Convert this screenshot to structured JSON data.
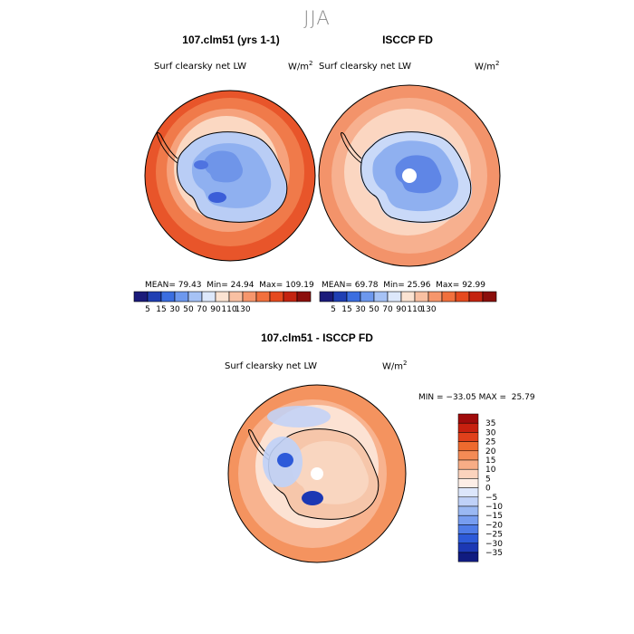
{
  "season": "JJA",
  "panels": [
    {
      "title": "107.clm51 (yrs 1-1)",
      "variable": "Surf clearsky net LW",
      "units": "W/m",
      "units_sup": "2",
      "stats": {
        "mean": "79.43",
        "min": "24.94",
        "max": "109.19"
      }
    },
    {
      "title": "ISCCP FD",
      "variable": "Surf clearsky net LW",
      "units": "W/m",
      "units_sup": "2",
      "stats": {
        "mean": "69.78",
        "min": "25.96",
        "max": "92.99"
      }
    }
  ],
  "stat_labels": {
    "mean": "MEAN=",
    "min": "Min=",
    "max": "Max="
  },
  "diff_panel": {
    "title": "107.clm51 - ISCCP FD",
    "variable": "Surf clearsky net LW",
    "units": "W/m",
    "units_sup": "2",
    "stats_text": "MIN = −33.05 MAX =  25.79"
  },
  "colorbar_top": {
    "colors": [
      "#1a1a7a",
      "#1f3fb3",
      "#3b6ee0",
      "#6d98ee",
      "#a6c2f5",
      "#dde8fb",
      "#fbe3d2",
      "#f9c0a2",
      "#f6966c",
      "#f1703d",
      "#e64a1e",
      "#c42410",
      "#8b0e0b"
    ],
    "tick_labels": [
      "5",
      "15",
      "30",
      "50",
      "70",
      "90",
      "110",
      "130"
    ]
  },
  "colorbar_diff": {
    "colors": [
      "#a00b0b",
      "#c7200f",
      "#e0401b",
      "#ee6a2e",
      "#f48b55",
      "#f8ad86",
      "#fbd3bd",
      "#fdeee6",
      "#dce6fb",
      "#bfd1f8",
      "#9ab8f3",
      "#779df0",
      "#4f7ce8",
      "#2d5ad9",
      "#1c38b4",
      "#101b80"
    ],
    "tick_labels": [
      "35",
      "30",
      "25",
      "20",
      "15",
      "10",
      "5",
      "0",
      "−5",
      "−10",
      "−15",
      "−20",
      "−25",
      "−30",
      "−35"
    ]
  },
  "chart_data": {
    "type": "heatmap",
    "figure_title": "JJA",
    "maps": [
      {
        "title": "107.clm51 (yrs 1-1)",
        "variable": "Surf clearsky net LW",
        "units": "W/m2",
        "projection": "south polar stereographic",
        "mean": 79.43,
        "min": 24.94,
        "max": 109.19,
        "contour_levels": [
          5,
          15,
          30,
          50,
          70,
          90,
          110,
          130
        ]
      },
      {
        "title": "ISCCP FD",
        "variable": "Surf clearsky net LW",
        "units": "W/m2",
        "projection": "south polar stereographic",
        "mean": 69.78,
        "min": 25.96,
        "max": 92.99,
        "contour_levels": [
          5,
          15,
          30,
          50,
          70,
          90,
          110,
          130
        ]
      },
      {
        "title": "107.clm51 - ISCCP FD",
        "variable": "Surf clearsky net LW",
        "units": "W/m2",
        "projection": "south polar stereographic",
        "min": -33.05,
        "max": 25.79,
        "contour_levels": [
          -35,
          -30,
          -25,
          -20,
          -15,
          -10,
          -5,
          0,
          5,
          10,
          15,
          20,
          25,
          30,
          35
        ]
      }
    ]
  }
}
